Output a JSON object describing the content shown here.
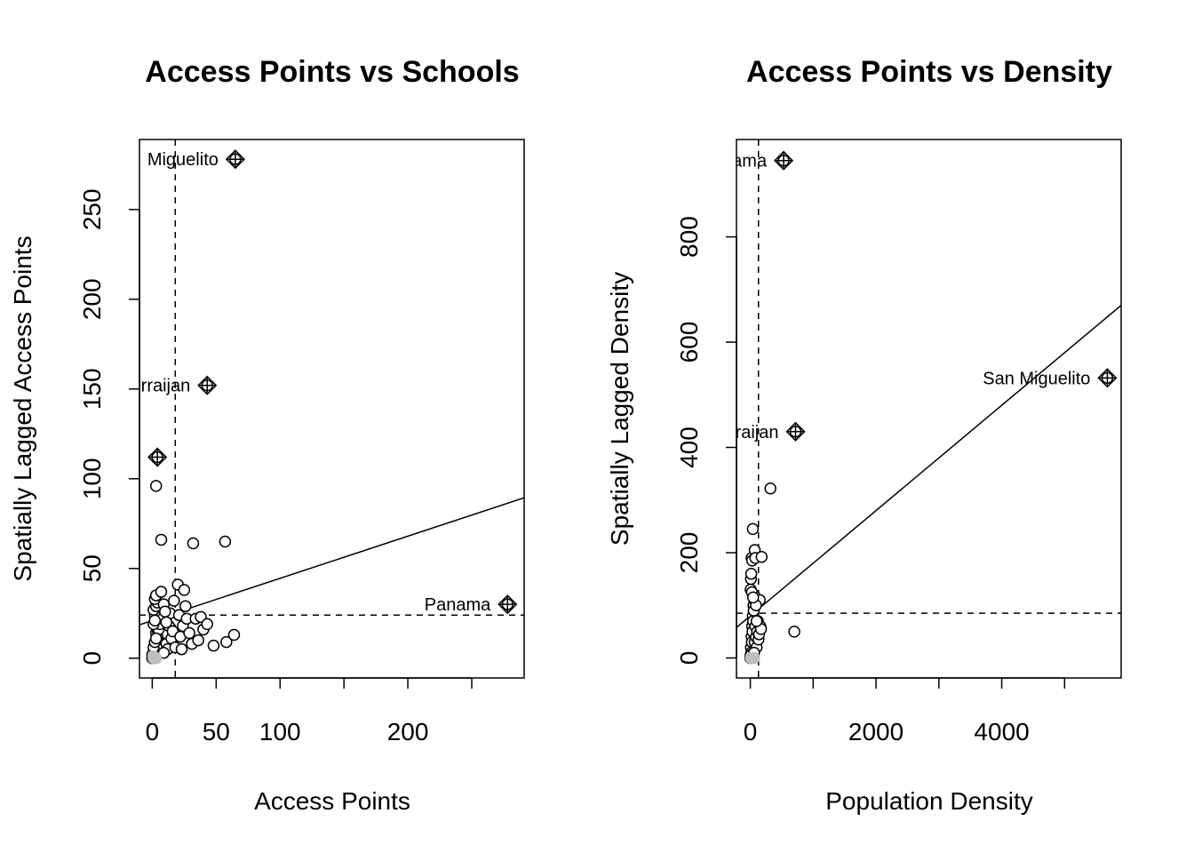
{
  "chart_data": [
    {
      "type": "scatter",
      "title": "Access Points vs Schools",
      "xlabel": "Access Points",
      "ylabel": "Spatially Lagged Access Points",
      "xlim": [
        -10,
        291
      ],
      "ylim": [
        -11,
        289
      ],
      "x_ticks": [
        0,
        50,
        100,
        150,
        200,
        250
      ],
      "x_tick_labels": [
        "0",
        "50",
        "100",
        "",
        "200",
        ""
      ],
      "y_ticks": [
        0,
        50,
        100,
        150,
        200,
        250
      ],
      "y_tick_labels": [
        "0",
        "50",
        "100",
        "150",
        "200",
        "250"
      ],
      "mean_x": 18,
      "mean_y": 24,
      "regression": {
        "intercept": 21,
        "slope": 0.235
      },
      "points": [
        [
          0,
          0
        ],
        [
          1,
          1
        ],
        [
          2,
          0
        ],
        [
          1,
          3
        ],
        [
          2,
          5
        ],
        [
          3,
          2
        ],
        [
          4,
          8
        ],
        [
          5,
          4
        ],
        [
          6,
          10
        ],
        [
          7,
          6
        ],
        [
          8,
          12
        ],
        [
          3,
          14
        ],
        [
          4,
          16
        ],
        [
          5,
          18
        ],
        [
          6,
          20
        ],
        [
          7,
          22
        ],
        [
          2,
          24
        ],
        [
          1,
          27
        ],
        [
          3,
          29
        ],
        [
          4,
          31
        ],
        [
          2,
          33
        ],
        [
          3,
          35
        ],
        [
          7,
          37
        ],
        [
          9,
          30
        ],
        [
          10,
          14
        ],
        [
          11,
          8
        ],
        [
          12,
          5
        ],
        [
          13,
          18
        ],
        [
          14,
          25
        ],
        [
          15,
          11
        ],
        [
          16,
          15
        ],
        [
          17,
          32
        ],
        [
          18,
          6
        ],
        [
          20,
          41
        ],
        [
          21,
          24
        ],
        [
          22,
          12
        ],
        [
          23,
          5
        ],
        [
          24,
          18
        ],
        [
          25,
          38
        ],
        [
          26,
          29
        ],
        [
          27,
          22
        ],
        [
          29,
          14
        ],
        [
          31,
          8
        ],
        [
          34,
          22
        ],
        [
          36,
          10
        ],
        [
          38,
          23
        ],
        [
          40,
          16
        ],
        [
          43,
          19
        ],
        [
          48,
          7
        ],
        [
          58,
          9
        ],
        [
          64,
          13
        ],
        [
          3,
          96
        ],
        [
          7,
          66
        ],
        [
          32,
          64
        ],
        [
          57,
          65
        ],
        [
          0,
          2
        ],
        [
          1,
          6
        ],
        [
          2,
          9
        ],
        [
          4,
          12
        ],
        [
          5,
          16
        ],
        [
          6,
          19
        ],
        [
          8,
          22
        ],
        [
          9,
          3
        ],
        [
          10,
          26
        ],
        [
          11,
          20
        ],
        [
          1,
          19
        ],
        [
          2,
          21
        ],
        [
          3,
          11
        ]
      ],
      "grey_points": [
        [
          1,
          0
        ],
        [
          2,
          0
        ],
        [
          3,
          0
        ],
        [
          1,
          1
        ]
      ],
      "outliers": [
        {
          "x": 65,
          "y": 278,
          "label": "Miguelito"
        },
        {
          "x": 43,
          "y": 152,
          "label": "rraijan"
        },
        {
          "x": 4,
          "y": 112,
          "label": ""
        },
        {
          "x": 278,
          "y": 30,
          "label": "Panama"
        }
      ]
    },
    {
      "type": "scatter",
      "title": "Access Points vs Density",
      "xlabel": "Population Density",
      "ylabel": "Spatially Lagged Density",
      "xlim": [
        -220,
        5900
      ],
      "ylim": [
        -38,
        985
      ],
      "x_ticks": [
        0,
        1000,
        2000,
        3000,
        4000,
        5000
      ],
      "x_tick_labels": [
        "0",
        "",
        "2000",
        "",
        "4000",
        ""
      ],
      "y_ticks": [
        0,
        200,
        400,
        600,
        800
      ],
      "y_tick_labels": [
        "0",
        "200",
        "400",
        "600",
        "800"
      ],
      "mean_x": 130,
      "mean_y": 85,
      "regression": {
        "intercept": 80,
        "slope": 0.1
      },
      "points": [
        [
          0,
          0
        ],
        [
          10,
          20
        ],
        [
          20,
          40
        ],
        [
          30,
          60
        ],
        [
          40,
          80
        ],
        [
          50,
          100
        ],
        [
          60,
          120
        ],
        [
          15,
          10
        ],
        [
          25,
          30
        ],
        [
          35,
          50
        ],
        [
          45,
          70
        ],
        [
          55,
          90
        ],
        [
          65,
          110
        ],
        [
          5,
          5
        ],
        [
          70,
          30
        ],
        [
          80,
          60
        ],
        [
          90,
          40
        ],
        [
          100,
          20
        ],
        [
          110,
          50
        ],
        [
          120,
          70
        ],
        [
          130,
          35
        ],
        [
          140,
          45
        ],
        [
          60,
          10
        ],
        [
          20,
          190
        ],
        [
          30,
          185
        ],
        [
          40,
          245
        ],
        [
          70,
          205
        ],
        [
          80,
          190
        ],
        [
          180,
          192
        ],
        [
          150,
          110
        ],
        [
          160,
          60
        ],
        [
          170,
          55
        ],
        [
          320,
          322
        ],
        [
          700,
          50
        ],
        [
          90,
          100
        ],
        [
          100,
          70
        ],
        [
          5,
          130
        ],
        [
          10,
          150
        ],
        [
          15,
          160
        ],
        [
          25,
          125
        ],
        [
          45,
          115
        ]
      ],
      "grey_points": [
        [
          10,
          0
        ],
        [
          30,
          0
        ],
        [
          60,
          0
        ]
      ],
      "outliers": [
        {
          "x": 530,
          "y": 945,
          "label": "ama"
        },
        {
          "x": 720,
          "y": 430,
          "label": "raijan"
        },
        {
          "x": 5680,
          "y": 532,
          "label": "San Miguelito"
        }
      ]
    }
  ]
}
